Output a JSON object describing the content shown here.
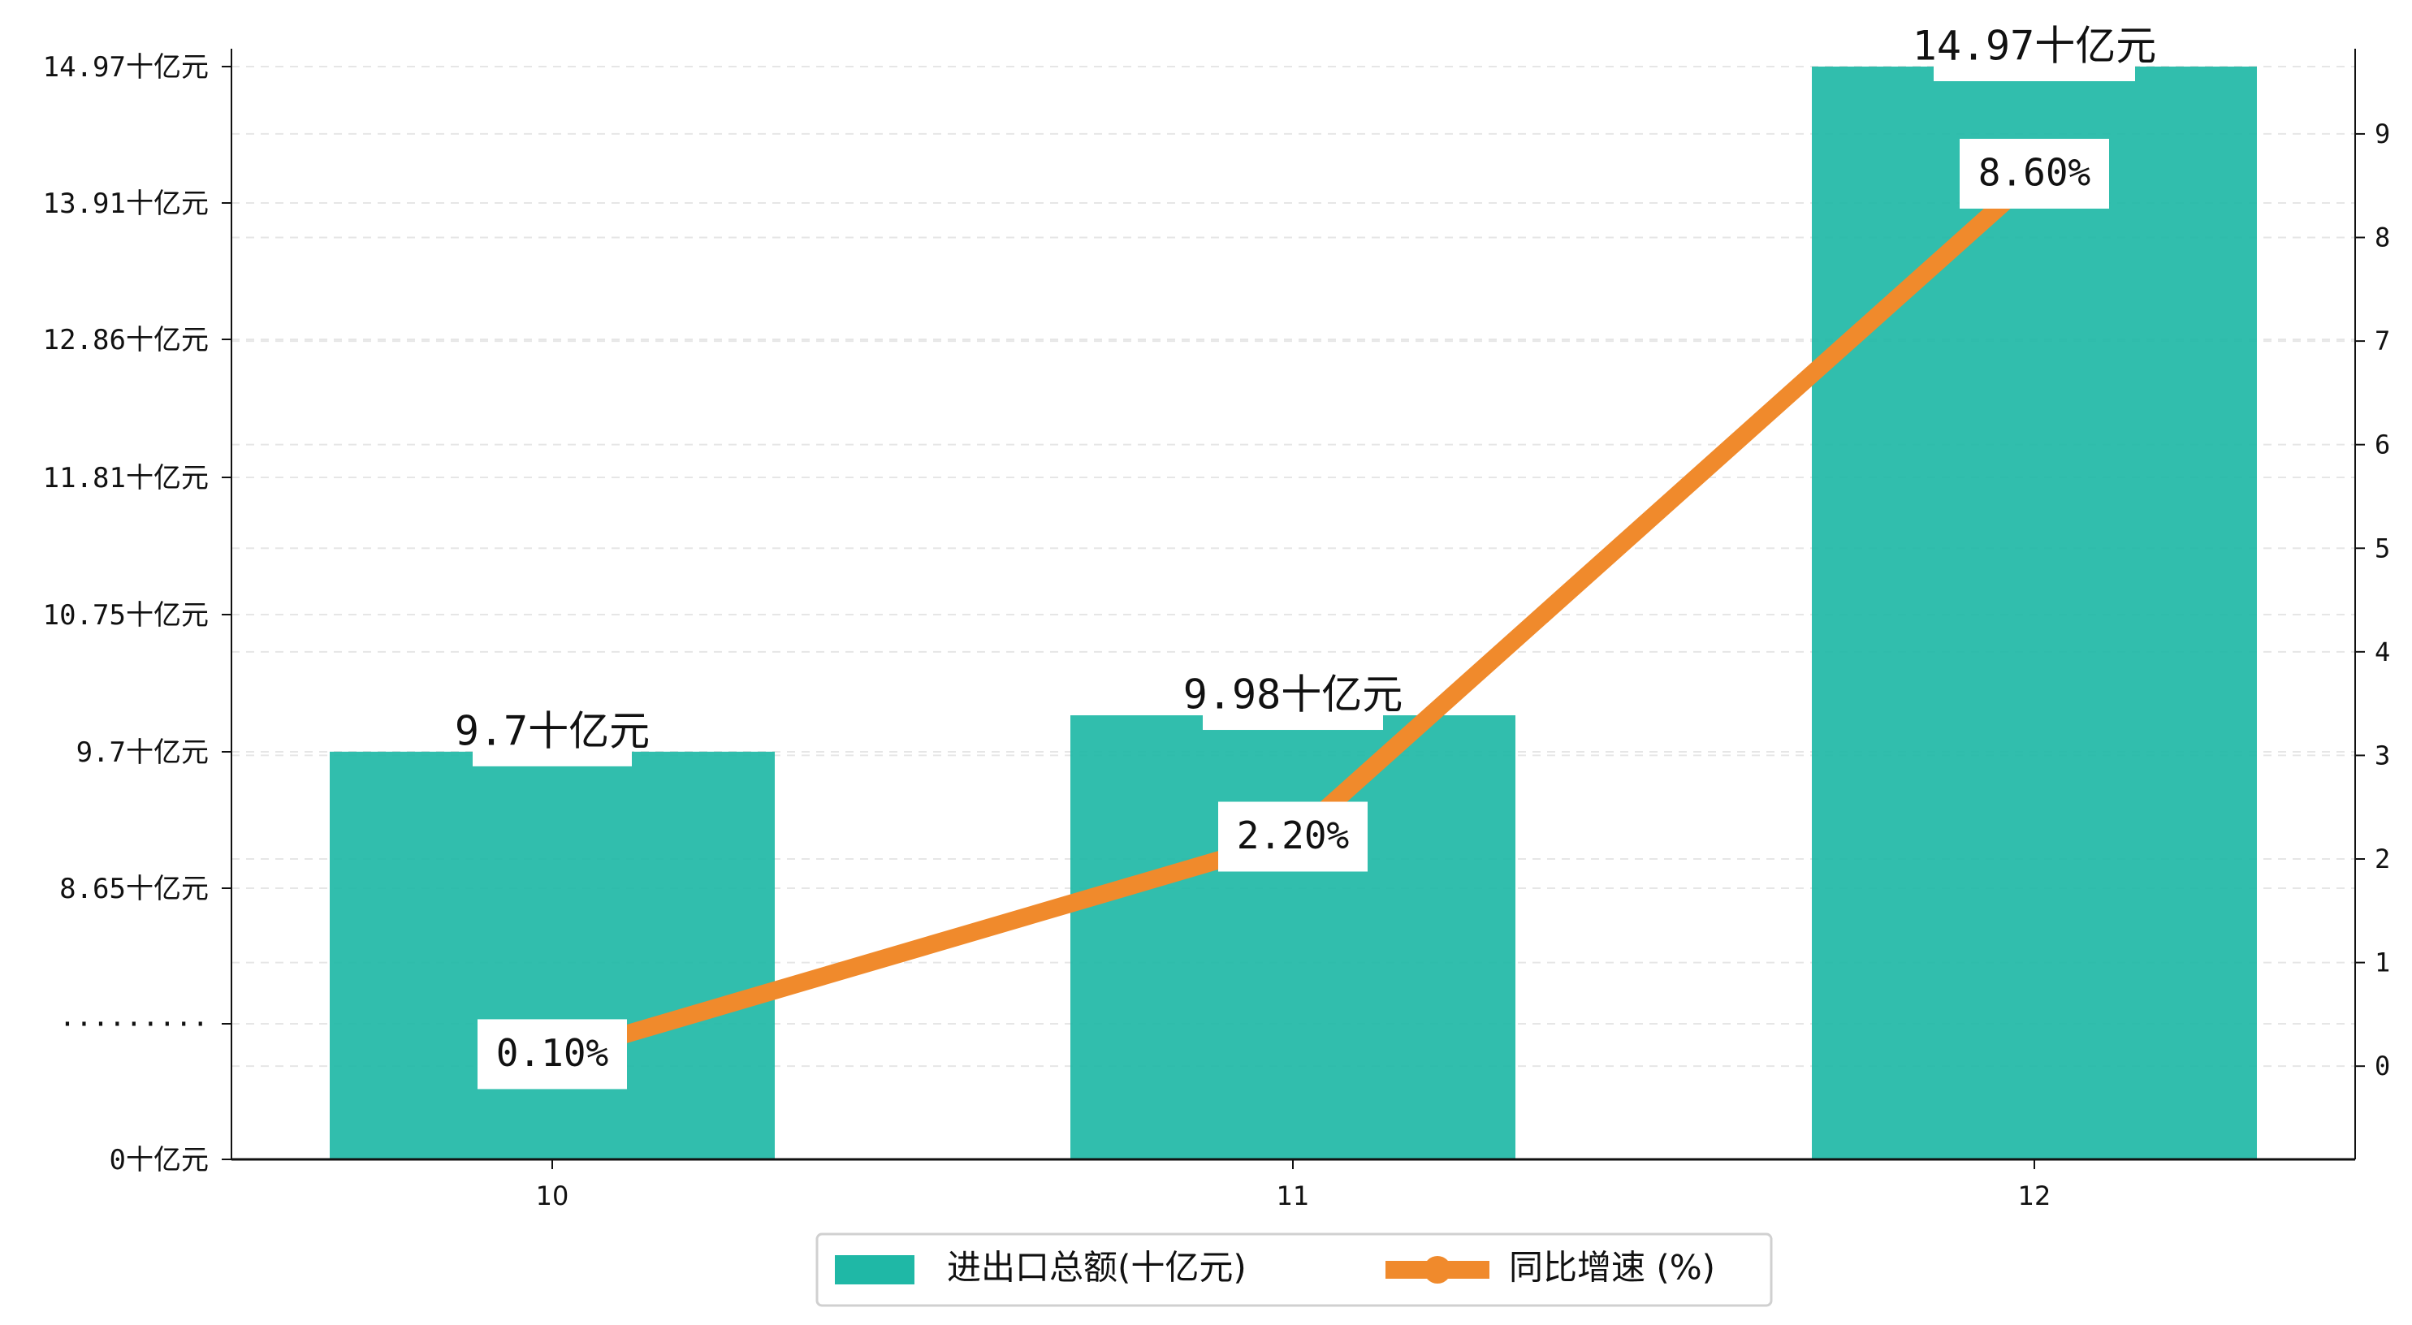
{
  "colors": {
    "bar": "#1fb8a6",
    "line": "#f08a2c",
    "grid": "#e6e6e6",
    "axis": "#111111"
  },
  "chart_data": {
    "type": "bar",
    "categories": [
      "10",
      "11",
      "12"
    ],
    "series": [
      {
        "name": "进出口总额(十亿元)",
        "type": "bar",
        "axis": "left",
        "values": [
          9.7,
          9.98,
          14.97
        ],
        "labels": [
          "9.7十亿元",
          "9.98十亿元",
          "14.97十亿元"
        ]
      },
      {
        "name": "同比增速 (%)",
        "type": "line",
        "axis": "right",
        "values": [
          0.1,
          2.2,
          8.6
        ],
        "labels": [
          "0.10%",
          "2.20%",
          "8.60%"
        ]
      }
    ],
    "y_left": {
      "tick_labels": [
        "0十亿元",
        "·········",
        "8.65十亿元",
        "9.7十亿元",
        "10.75十亿元",
        "11.81十亿元",
        "12.86十亿元",
        "13.91十亿元",
        "14.97十亿元"
      ],
      "broken_axis": true
    },
    "y_right": {
      "ticks": [
        0,
        1,
        2,
        3,
        4,
        5,
        6,
        7,
        8,
        9
      ],
      "range": [
        -0.9,
        9.65
      ]
    },
    "grid": true,
    "legend_position": "bottom-center"
  }
}
